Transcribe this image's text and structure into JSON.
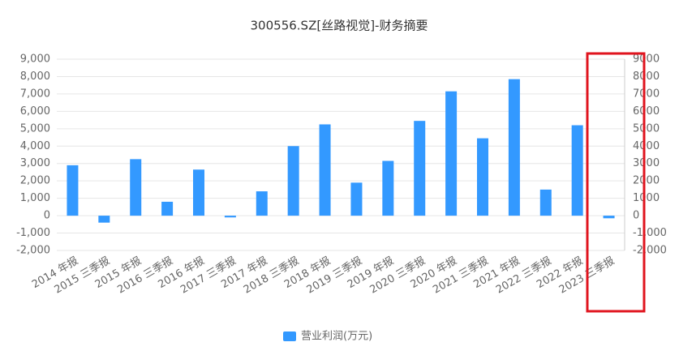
{
  "chart_data": {
    "type": "bar",
    "title": "300556.SZ[丝路视觉]-财务摘要",
    "categories": [
      "2014 年报",
      "2015 三季报",
      "2015 年报",
      "2016 三季报",
      "2016 年报",
      "2017 三季报",
      "2017 年报",
      "2018 三季报",
      "2018 年报",
      "2019 三季报",
      "2019 年报",
      "2020 三季报",
      "2020 年报",
      "2021 三季报",
      "2021 年报",
      "2022 三季报",
      "2022 年报",
      "2023 三季报"
    ],
    "series": [
      {
        "name": "营业利润(万元)",
        "color": "#3399ff",
        "values": [
          2900,
          -400,
          3250,
          800,
          2650,
          -100,
          1400,
          4000,
          5250,
          1900,
          3150,
          5450,
          7150,
          4450,
          7850,
          1500,
          5200,
          -150
        ]
      }
    ],
    "ylim": [
      -2000,
      9000
    ],
    "yticks": [
      {
        "value": -2000,
        "label": "-2,000"
      },
      {
        "value": -1000,
        "label": "-1,000"
      },
      0,
      {
        "value": 1000,
        "label": "1,000"
      },
      {
        "value": 2000,
        "label": "2,000"
      },
      {
        "value": 3000,
        "label": "3,000"
      },
      {
        "value": 4000,
        "label": "4,000"
      },
      {
        "value": 5000,
        "label": "5,000"
      },
      {
        "value": 6000,
        "label": "6,000"
      },
      {
        "value": 7000,
        "label": "7,000"
      },
      {
        "value": 8000,
        "label": "8,000"
      },
      {
        "value": 9000,
        "label": "9,000"
      }
    ],
    "y2lim": [
      -2000,
      9000
    ],
    "y2ticks": [
      {
        "value": -2000,
        "label": "-2,000"
      },
      {
        "value": -1000,
        "label": "-1,000"
      },
      0,
      1000,
      2000,
      3000,
      4000,
      5000,
      6000,
      7000,
      8000,
      9000
    ],
    "grid": true,
    "legend": "bottom"
  }
}
